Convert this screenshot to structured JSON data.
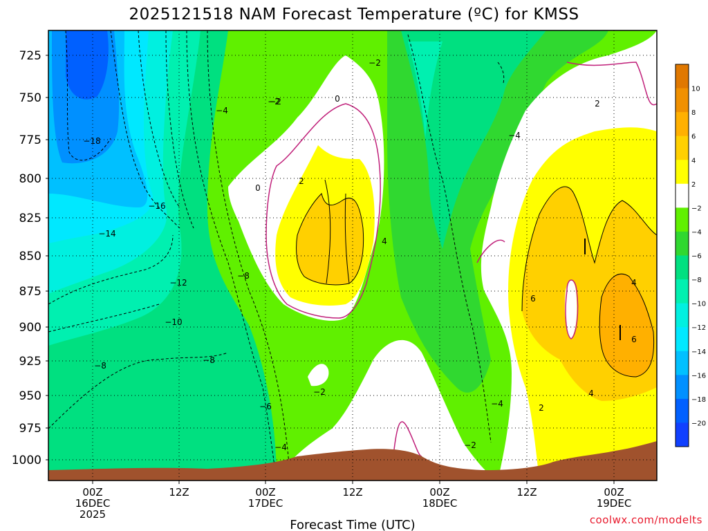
{
  "chart_data": {
    "type": "heatmap",
    "title": "2025121518 NAM Forecast Temperature (ºC) for KMSS",
    "xlabel": "Forecast Time (UTC)",
    "ylabel": "",
    "y_ticks": [
      "725",
      "750",
      "775",
      "800",
      "825",
      "850",
      "875",
      "900",
      "925",
      "950",
      "975",
      "1000"
    ],
    "x_ticks": [
      {
        "time": "00Z",
        "date": "16DEC",
        "year": "2025"
      },
      {
        "time": "12Z",
        "date": "",
        "year": ""
      },
      {
        "time": "00Z",
        "date": "17DEC",
        "year": ""
      },
      {
        "time": "12Z",
        "date": "",
        "year": ""
      },
      {
        "time": "00Z",
        "date": "18DEC",
        "year": ""
      },
      {
        "time": "12Z",
        "date": "",
        "year": ""
      },
      {
        "time": "00Z",
        "date": "19DEC",
        "year": ""
      }
    ],
    "colorbar": {
      "labels": [
        "10",
        "8",
        "6",
        "4",
        "2",
        "−2",
        "−4",
        "−6",
        "−8",
        "−10",
        "−12",
        "−14",
        "−16",
        "−18",
        "−20"
      ],
      "colors": [
        "#e07800",
        "#f09000",
        "#ffb000",
        "#ffd000",
        "#ffff00",
        "#ffffff",
        "#60f000",
        "#30d830",
        "#00e080",
        "#00f0b0",
        "#00f0e0",
        "#00e8ff",
        "#00c0ff",
        "#0090ff",
        "#0060ff",
        "#1040ff"
      ]
    },
    "contour_labels": [
      "−2",
      "0",
      "−4",
      "−2",
      "−18",
      "2",
      "0",
      "−16",
      "−14",
      "4",
      "−12",
      "−8",
      "−10",
      "6",
      "−8",
      "−8",
      "−2",
      "−6",
      "−4",
      "−2",
      "−4",
      "2",
      "−2",
      "4",
      "6",
      "2",
      "−4",
      "4"
    ],
    "terrain_color": "#a0522d",
    "credit": "coolwx.com/modelts"
  }
}
